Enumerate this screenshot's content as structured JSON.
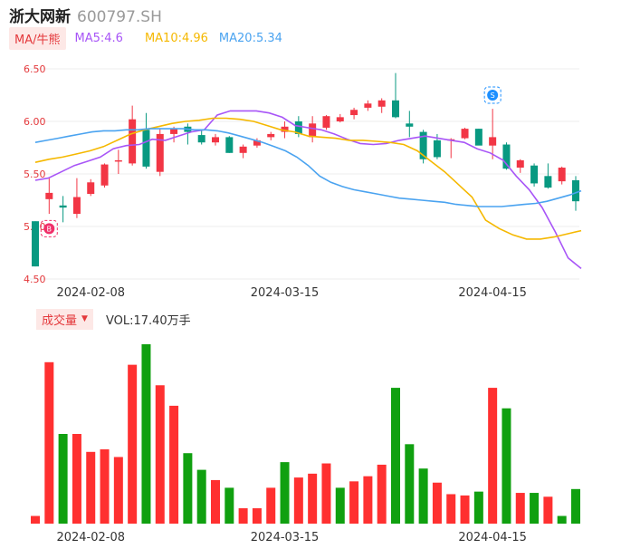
{
  "header": {
    "name": "浙大网新",
    "code": "600797.SH"
  },
  "legend": {
    "ma_tab": "MA/牛熊",
    "ma5": "MA5:4.6",
    "ma10": "MA10:4.96",
    "ma20": "MA20:5.34"
  },
  "volume_panel": {
    "tab": "成交量",
    "tab_arrow": "▼",
    "value": "VOL:17.40万手"
  },
  "markers": {
    "buy": "B",
    "sell": "S"
  },
  "colors": {
    "up": "#f23645",
    "down": "#089981",
    "vol_up": "#ff3030",
    "vol_down": "#10a010",
    "ma5": "#a855f7",
    "ma10": "#f5b800",
    "ma20": "#4aa3f0"
  },
  "chart_data": [
    {
      "type": "candlestick",
      "ylim": [
        4.5,
        6.5
      ],
      "y_ticks": [
        "6.50",
        "6.00",
        "5.50",
        "5.00",
        "4.50"
      ],
      "x_tick_labels": [
        "2024-02-08",
        "2024-03-15",
        "2024-04-15"
      ],
      "x_tick_index": [
        4,
        18,
        33
      ],
      "ohlc": [
        [
          5.05,
          5.05,
          4.62,
          4.62
        ],
        [
          5.26,
          5.46,
          5.12,
          5.32
        ],
        [
          5.2,
          5.29,
          5.04,
          5.18
        ],
        [
          5.12,
          5.46,
          5.08,
          5.28
        ],
        [
          5.31,
          5.45,
          5.29,
          5.42
        ],
        [
          5.39,
          5.6,
          5.37,
          5.59
        ],
        [
          5.62,
          5.73,
          5.5,
          5.63
        ],
        [
          5.6,
          6.15,
          5.58,
          6.02
        ],
        [
          5.92,
          6.08,
          5.55,
          5.57
        ],
        [
          5.52,
          5.93,
          5.48,
          5.88
        ],
        [
          5.88,
          5.95,
          5.8,
          5.93
        ],
        [
          5.95,
          5.98,
          5.78,
          5.9
        ],
        [
          5.87,
          5.92,
          5.78,
          5.8
        ],
        [
          5.8,
          5.88,
          5.77,
          5.85
        ],
        [
          5.85,
          5.86,
          5.7,
          5.7
        ],
        [
          5.7,
          5.78,
          5.65,
          5.76
        ],
        [
          5.77,
          5.84,
          5.75,
          5.82
        ],
        [
          5.85,
          5.9,
          5.82,
          5.88
        ],
        [
          5.9,
          6.0,
          5.84,
          5.95
        ],
        [
          6.0,
          6.05,
          5.85,
          5.88
        ],
        [
          5.85,
          6.05,
          5.8,
          5.98
        ],
        [
          5.94,
          6.06,
          5.92,
          6.05
        ],
        [
          6.0,
          6.07,
          5.99,
          6.04
        ],
        [
          6.06,
          6.13,
          6.02,
          6.11
        ],
        [
          6.13,
          6.2,
          6.1,
          6.17
        ],
        [
          6.14,
          6.22,
          6.08,
          6.2
        ],
        [
          6.2,
          6.46,
          6.03,
          6.04
        ],
        [
          5.98,
          6.1,
          5.85,
          5.95
        ],
        [
          5.9,
          5.92,
          5.6,
          5.64
        ],
        [
          5.82,
          5.88,
          5.64,
          5.66
        ],
        [
          5.83,
          5.84,
          5.65,
          5.83
        ],
        [
          5.84,
          5.94,
          5.83,
          5.93
        ],
        [
          5.93,
          5.93,
          5.78,
          5.77
        ],
        [
          5.77,
          6.12,
          5.64,
          5.85
        ],
        [
          5.78,
          5.8,
          5.54,
          5.55
        ],
        [
          5.56,
          5.64,
          5.51,
          5.63
        ],
        [
          5.58,
          5.6,
          5.38,
          5.41
        ],
        [
          5.48,
          5.6,
          5.36,
          5.37
        ],
        [
          5.43,
          5.57,
          5.4,
          5.56
        ],
        [
          5.44,
          5.48,
          5.15,
          5.24
        ]
      ],
      "ma5": [
        5.44,
        5.46,
        5.52,
        5.58,
        5.62,
        5.66,
        5.74,
        5.77,
        5.78,
        5.83,
        5.82,
        5.86,
        5.9,
        5.92,
        6.06,
        6.1,
        6.1,
        6.1,
        6.08,
        6.04,
        5.96,
        5.94,
        5.92,
        5.88,
        5.83,
        5.79,
        5.78,
        5.79,
        5.82,
        5.84,
        5.86,
        5.84,
        5.82,
        5.8,
        5.74,
        5.7,
        5.63,
        5.48,
        5.35,
        5.18,
        4.95,
        4.7,
        4.6
      ],
      "ma10": [
        5.61,
        5.64,
        5.66,
        5.69,
        5.72,
        5.76,
        5.82,
        5.88,
        5.92,
        5.95,
        5.98,
        6.0,
        6.01,
        6.03,
        6.03,
        6.02,
        6.0,
        5.96,
        5.92,
        5.9,
        5.86,
        5.85,
        5.84,
        5.82,
        5.82,
        5.81,
        5.8,
        5.78,
        5.72,
        5.62,
        5.52,
        5.4,
        5.28,
        5.06,
        4.98,
        4.92,
        4.88,
        4.88,
        4.9,
        4.93,
        4.96
      ],
      "ma20": [
        5.8,
        5.82,
        5.84,
        5.86,
        5.88,
        5.9,
        5.91,
        5.91,
        5.92,
        5.92,
        5.93,
        5.93,
        5.93,
        5.93,
        5.92,
        5.92,
        5.91,
        5.89,
        5.86,
        5.83,
        5.8,
        5.76,
        5.72,
        5.66,
        5.58,
        5.48,
        5.42,
        5.38,
        5.35,
        5.33,
        5.31,
        5.29,
        5.27,
        5.26,
        5.25,
        5.24,
        5.23,
        5.21,
        5.2,
        5.19,
        5.19,
        5.19,
        5.2,
        5.21,
        5.22,
        5.24,
        5.27,
        5.3,
        5.34
      ]
    },
    {
      "type": "bar",
      "x_tick_labels": [
        "2024-02-08",
        "2024-03-15",
        "2024-04-15"
      ],
      "x_tick_index": [
        4,
        18,
        33
      ],
      "values": [
        3.0,
        63.0,
        35.0,
        35.0,
        28.0,
        29.0,
        26.0,
        62.0,
        70.0,
        54.0,
        46.0,
        27.5,
        21.0,
        17.0,
        14.0,
        6.0,
        6.0,
        14.0,
        24.0,
        18.0,
        19.5,
        23.5,
        14.0,
        16.5,
        18.5,
        23.0,
        53.0,
        31.0,
        21.5,
        16.0,
        11.5,
        11.0,
        12.5,
        53.0,
        45.0,
        12.0,
        12.0,
        10.5,
        3.0,
        13.5
      ],
      "up": [
        true,
        true,
        false,
        true,
        true,
        true,
        true,
        true,
        false,
        true,
        true,
        false,
        false,
        true,
        false,
        true,
        true,
        true,
        false,
        true,
        true,
        true,
        false,
        true,
        true,
        true,
        false,
        false,
        false,
        true,
        true,
        true,
        false,
        true,
        false,
        true,
        false,
        true,
        false,
        false
      ]
    }
  ]
}
